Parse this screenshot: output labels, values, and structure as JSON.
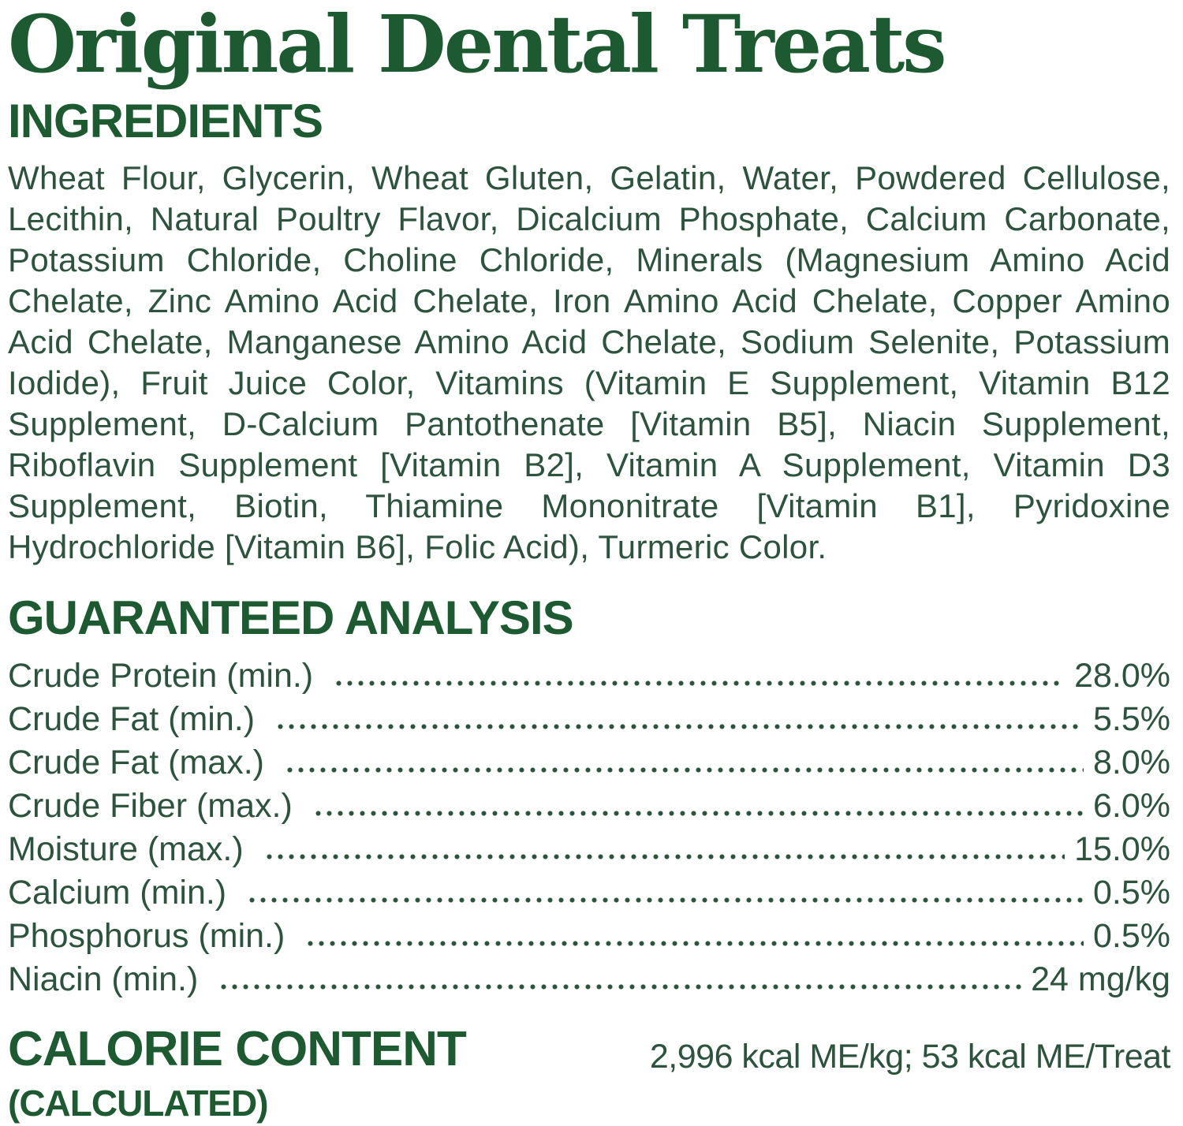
{
  "title": "Original Dental Treats",
  "ingredients": {
    "heading": "INGREDIENTS",
    "text": "Wheat Flour, Glycerin, Wheat Gluten, Gelatin, Water, Powdered Cellulose, Lecithin, Natural Poultry Flavor, Dicalcium Phosphate, Calcium Carbonate, Potassium Chloride, Choline Chloride, Minerals (Magnesium Amino Acid Chelate, Zinc Amino Acid Chelate, Iron Amino Acid Chelate, Copper Amino Acid Chelate, Manganese Amino Acid Chelate, Sodium Selenite, Potassium Iodide), Fruit Juice Color, Vitamins (Vitamin E Supplement, Vitamin B12 Supplement, D-Calcium Pantothenate [Vitamin B5], Niacin Supplement, Riboflavin Supplement [Vitamin B2], Vitamin A Supplement, Vitamin D3 Supplement, Biotin, Thiamine Mononitrate [Vitamin B1], Pyridoxine Hydrochloride [Vitamin B6], Folic Acid), Turmeric Color."
  },
  "guaranteed_analysis": {
    "heading": "GUARANTEED ANALYSIS",
    "rows": [
      {
        "label": "Crude Protein (min.)",
        "value": "28.0%"
      },
      {
        "label": "Crude Fat (min.)",
        "value": "5.5%"
      },
      {
        "label": "Crude Fat (max.)",
        "value": "8.0%"
      },
      {
        "label": "Crude Fiber (max.)",
        "value": "6.0%"
      },
      {
        "label": "Moisture (max.)",
        "value": "15.0%"
      },
      {
        "label": "Calcium (min.)",
        "value": "0.5%"
      },
      {
        "label": "Phosphorus (min.)",
        "value": "0.5%"
      },
      {
        "label": "Niacin (min.)",
        "value": "24 mg/kg"
      }
    ]
  },
  "calorie_content": {
    "heading_line1": "CALORIE CONTENT",
    "heading_line2": "(CALCULATED)",
    "value": "2,996 kcal ME/kg; 53 kcal ME/Treat"
  },
  "colors": {
    "heading_green": "#1d5a31",
    "body_green": "#2d523d",
    "background": "#ffffff"
  }
}
